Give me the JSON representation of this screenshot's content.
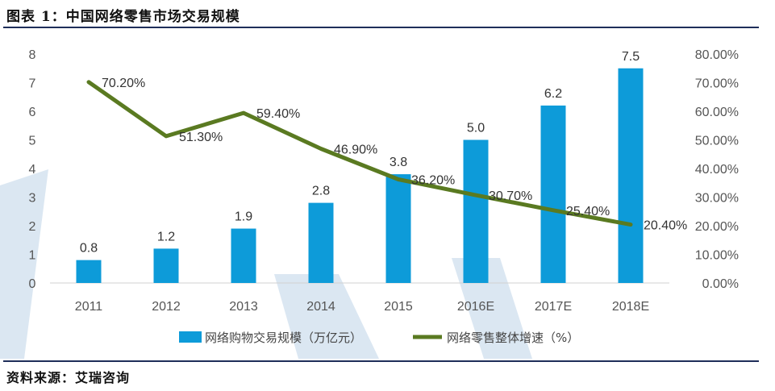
{
  "figure": {
    "title": "图表 1：中国网络零售市场交易规模",
    "source": "资料来源：艾瑞咨询",
    "colors": {
      "bar": "#0d9bd9",
      "line": "#5a7a21",
      "rule": "#1f2e5a",
      "watermark": "#dbe7f2"
    }
  },
  "chart_data": {
    "type": "bar",
    "categories": [
      "2011",
      "2012",
      "2013",
      "2014",
      "2015",
      "2016E",
      "2017E",
      "2018E"
    ],
    "series": [
      {
        "name": "网络购物交易规模（万亿元）",
        "type": "bar",
        "axis": "left",
        "values": [
          0.8,
          1.2,
          1.9,
          2.8,
          3.8,
          5.0,
          6.2,
          7.5
        ],
        "labels": [
          "0.8",
          "1.2",
          "1.9",
          "2.8",
          "3.8",
          "5.0",
          "6.2",
          "7.5"
        ]
      },
      {
        "name": "网络零售整体增速（%）",
        "type": "line",
        "axis": "right",
        "values": [
          70.2,
          51.3,
          59.4,
          46.9,
          36.2,
          30.7,
          25.4,
          20.4
        ],
        "labels": [
          "70.20%",
          "51.30%",
          "59.40%",
          "46.90%",
          "36.20%",
          "30.70%",
          "25.40%",
          "20.40%"
        ]
      }
    ],
    "y_left": {
      "min": 0,
      "max": 8,
      "ticks": [
        "0",
        "1",
        "2",
        "3",
        "4",
        "5",
        "6",
        "7",
        "8"
      ]
    },
    "y_right": {
      "min": 0,
      "max": 80,
      "ticks": [
        "0.00%",
        "10.00%",
        "20.00%",
        "30.00%",
        "40.00%",
        "50.00%",
        "60.00%",
        "70.00%",
        "80.00%"
      ]
    },
    "grid": false,
    "legend": "bottom-center"
  }
}
